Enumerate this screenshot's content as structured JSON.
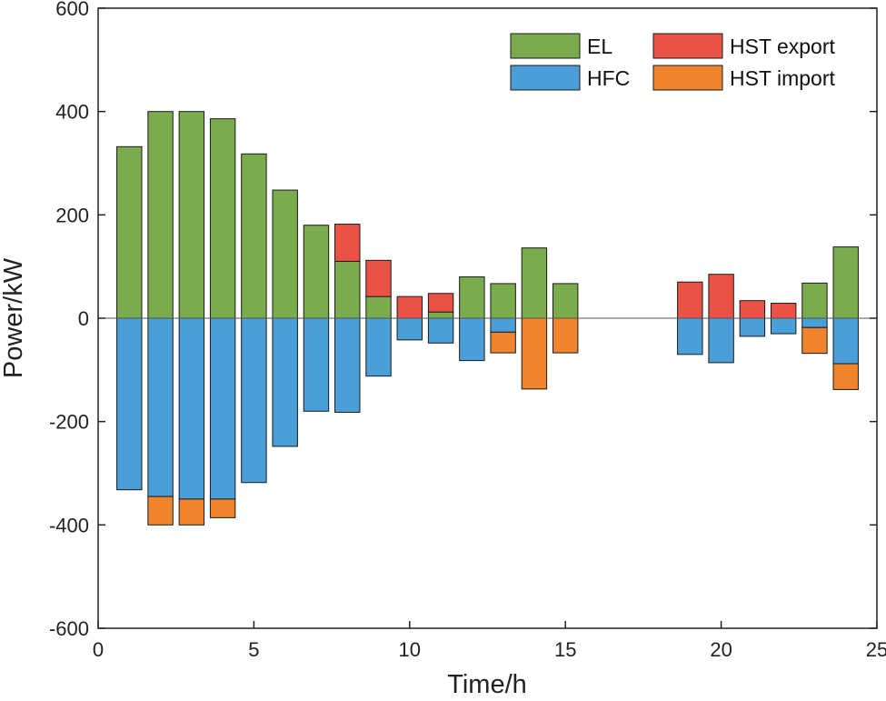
{
  "colors": {
    "EL": "#7aab4c",
    "HFC": "#4a9fd8",
    "HST export": "#ea5245",
    "HST import": "#ef842c"
  },
  "chart_data": {
    "type": "bar",
    "stacked": true,
    "xlabel": "Time/h",
    "ylabel": "Power/kW",
    "xlim": [
      0,
      25
    ],
    "ylim": [
      -600,
      600
    ],
    "xticks": [
      0,
      5,
      10,
      15,
      20,
      25
    ],
    "yticks": [
      -600,
      -400,
      -200,
      0,
      200,
      400,
      600
    ],
    "legend_position": "top-right",
    "legend": [
      "EL",
      "HFC",
      "HST export",
      "HST import"
    ],
    "x": [
      1,
      2,
      3,
      4,
      5,
      6,
      7,
      8,
      9,
      10,
      11,
      12,
      13,
      14,
      15,
      16,
      17,
      18,
      19,
      20,
      21,
      22,
      23,
      24
    ],
    "series": [
      {
        "name": "EL",
        "values": [
          332,
          400,
          400,
          386,
          318,
          248,
          180,
          110,
          42,
          0,
          12,
          80,
          67,
          136,
          67,
          0,
          0,
          0,
          0,
          0,
          0,
          0,
          68,
          138
        ]
      },
      {
        "name": "HST export",
        "values": [
          0,
          0,
          0,
          0,
          0,
          0,
          0,
          72,
          70,
          42,
          36,
          0,
          0,
          0,
          0,
          0,
          0,
          0,
          70,
          85,
          34,
          29,
          0,
          0
        ]
      },
      {
        "name": "HFC",
        "values": [
          -332,
          -345,
          -350,
          -350,
          -318,
          -248,
          -180,
          -182,
          -112,
          -42,
          -48,
          -82,
          -27,
          0,
          0,
          0,
          0,
          0,
          -70,
          -86,
          -35,
          -30,
          -18,
          -88
        ]
      },
      {
        "name": "HST import",
        "values": [
          0,
          -55,
          -50,
          -36,
          0,
          0,
          0,
          0,
          0,
          0,
          0,
          0,
          -40,
          -137,
          -67,
          0,
          0,
          0,
          0,
          0,
          0,
          0,
          -50,
          -50
        ]
      }
    ]
  }
}
